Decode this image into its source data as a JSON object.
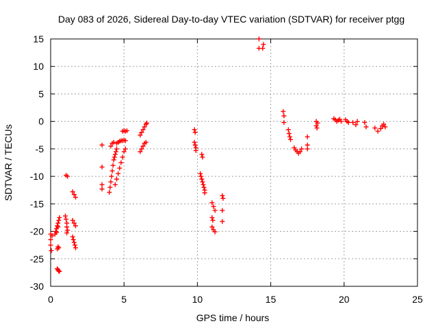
{
  "chart_data": {
    "type": "scatter",
    "title": "Day 083 of 2026, Sidereal Day-to-day VTEC variation (SDTVAR) for receiver ptgg",
    "xlabel": "GPS time / hours",
    "ylabel": "SDTVAR / TECUs",
    "xlim": [
      0,
      25
    ],
    "ylim": [
      -30,
      15
    ],
    "xticks": [
      0,
      5,
      10,
      15,
      20,
      25
    ],
    "yticks": [
      -30,
      -25,
      -20,
      -15,
      -10,
      -5,
      0,
      5,
      10,
      15
    ],
    "xtick_labels": [
      "0",
      "5",
      "10",
      "15",
      "20",
      "25"
    ],
    "ytick_labels": [
      "-30",
      "-25",
      "-20",
      "-15",
      "-10",
      "-5",
      "0",
      "5",
      "10",
      "15"
    ],
    "grid": true,
    "marker": "plus",
    "color": "#ff0000",
    "series": [
      {
        "name": "SDTVAR",
        "points": [
          [
            0.0,
            -20.5
          ],
          [
            0.0,
            -21.5
          ],
          [
            0.0,
            -22.5
          ],
          [
            0.05,
            -23.5
          ],
          [
            0.1,
            -20.8
          ],
          [
            0.3,
            -20.5
          ],
          [
            0.35,
            -20.0
          ],
          [
            0.4,
            -19.5
          ],
          [
            0.45,
            -19.0
          ],
          [
            0.5,
            -18.5
          ],
          [
            0.55,
            -18.0
          ],
          [
            0.6,
            -17.5
          ],
          [
            0.4,
            -20.2
          ],
          [
            0.5,
            -19.2
          ],
          [
            0.45,
            -23.2
          ],
          [
            0.5,
            -22.8
          ],
          [
            0.55,
            -23.0
          ],
          [
            0.45,
            -26.8
          ],
          [
            0.5,
            -27.0
          ],
          [
            0.55,
            -27.2
          ],
          [
            0.6,
            -27.3
          ],
          [
            1.0,
            -17.2
          ],
          [
            1.05,
            -17.8
          ],
          [
            1.1,
            -18.5
          ],
          [
            1.1,
            -19.2
          ],
          [
            1.15,
            -19.8
          ],
          [
            1.1,
            -20.3
          ],
          [
            1.05,
            -9.8
          ],
          [
            1.15,
            -10.0
          ],
          [
            1.5,
            -18.0
          ],
          [
            1.6,
            -18.5
          ],
          [
            1.7,
            -19.0
          ],
          [
            1.5,
            -21.0
          ],
          [
            1.55,
            -21.5
          ],
          [
            1.6,
            -22.0
          ],
          [
            1.65,
            -22.5
          ],
          [
            1.7,
            -23.0
          ],
          [
            1.5,
            -12.8
          ],
          [
            1.6,
            -13.3
          ],
          [
            1.7,
            -13.8
          ],
          [
            3.5,
            -4.3
          ],
          [
            3.5,
            -8.3
          ],
          [
            3.5,
            -11.5
          ],
          [
            3.5,
            -12.3
          ],
          [
            4.0,
            -12.9
          ],
          [
            4.05,
            -12.0
          ],
          [
            4.1,
            -11.0
          ],
          [
            4.15,
            -10.0
          ],
          [
            4.2,
            -9.0
          ],
          [
            4.25,
            -8.0
          ],
          [
            4.3,
            -7.0
          ],
          [
            4.35,
            -6.5
          ],
          [
            4.4,
            -6.0
          ],
          [
            4.45,
            -5.5
          ],
          [
            4.5,
            -5.0
          ],
          [
            4.1,
            -4.5
          ],
          [
            4.2,
            -4.0
          ],
          [
            4.3,
            -3.8
          ],
          [
            4.5,
            -4.0
          ],
          [
            4.6,
            -3.8
          ],
          [
            4.7,
            -3.6
          ],
          [
            4.8,
            -3.5
          ],
          [
            4.9,
            -3.5
          ],
          [
            5.0,
            -3.4
          ],
          [
            5.1,
            -3.5
          ],
          [
            4.4,
            -11.5
          ],
          [
            4.5,
            -10.5
          ],
          [
            4.6,
            -9.5
          ],
          [
            4.7,
            -8.5
          ],
          [
            4.8,
            -7.5
          ],
          [
            4.9,
            -6.5
          ],
          [
            5.0,
            -5.5
          ],
          [
            5.1,
            -5.0
          ],
          [
            4.9,
            -1.8
          ],
          [
            5.0,
            -1.7
          ],
          [
            5.1,
            -1.8
          ],
          [
            5.2,
            -1.7
          ],
          [
            6.1,
            -2.5
          ],
          [
            6.2,
            -2.0
          ],
          [
            6.3,
            -1.5
          ],
          [
            6.4,
            -1.0
          ],
          [
            6.5,
            -0.5
          ],
          [
            6.55,
            -0.3
          ],
          [
            6.1,
            -5.5
          ],
          [
            6.2,
            -5.0
          ],
          [
            6.3,
            -4.5
          ],
          [
            6.4,
            -4.0
          ],
          [
            6.5,
            -3.8
          ],
          [
            9.8,
            -1.5
          ],
          [
            9.85,
            -2.0
          ],
          [
            9.8,
            -3.8
          ],
          [
            9.85,
            -4.3
          ],
          [
            9.9,
            -4.8
          ],
          [
            9.9,
            -5.3
          ],
          [
            10.3,
            -6.0
          ],
          [
            10.35,
            -6.5
          ],
          [
            10.2,
            -9.5
          ],
          [
            10.25,
            -10.0
          ],
          [
            10.3,
            -10.5
          ],
          [
            10.35,
            -11.0
          ],
          [
            10.4,
            -11.5
          ],
          [
            10.45,
            -12.0
          ],
          [
            10.5,
            -12.5
          ],
          [
            10.5,
            -13.0
          ],
          [
            11.0,
            -14.8
          ],
          [
            11.1,
            -15.5
          ],
          [
            11.2,
            -16.2
          ],
          [
            11.0,
            -17.5
          ],
          [
            11.05,
            -18.0
          ],
          [
            11.0,
            -19.2
          ],
          [
            11.1,
            -19.7
          ],
          [
            11.2,
            -20.1
          ],
          [
            11.7,
            -13.5
          ],
          [
            11.75,
            -14.0
          ],
          [
            11.7,
            -16.2
          ],
          [
            11.7,
            -18.2
          ],
          [
            14.2,
            15.0
          ],
          [
            14.2,
            13.3
          ],
          [
            14.45,
            13.3
          ],
          [
            14.5,
            14.0
          ],
          [
            15.85,
            1.8
          ],
          [
            15.9,
            1.0
          ],
          [
            15.9,
            -0.2
          ],
          [
            16.2,
            -1.5
          ],
          [
            16.25,
            -2.2
          ],
          [
            16.3,
            -2.8
          ],
          [
            16.35,
            -3.3
          ],
          [
            16.6,
            -4.8
          ],
          [
            16.7,
            -5.2
          ],
          [
            16.8,
            -5.5
          ],
          [
            16.9,
            -5.8
          ],
          [
            17.0,
            -5.5
          ],
          [
            17.1,
            -5.0
          ],
          [
            17.5,
            -2.8
          ],
          [
            17.5,
            -4.3
          ],
          [
            17.5,
            -5.0
          ],
          [
            18.1,
            0.0
          ],
          [
            18.1,
            -0.8
          ],
          [
            18.15,
            -1.2
          ],
          [
            18.2,
            -0.3
          ],
          [
            19.3,
            0.5
          ],
          [
            19.4,
            0.3
          ],
          [
            19.5,
            0.0
          ],
          [
            19.6,
            0.2
          ],
          [
            19.7,
            0.4
          ],
          [
            19.8,
            0.0
          ],
          [
            20.1,
            0.3
          ],
          [
            20.2,
            0.0
          ],
          [
            20.3,
            -0.2
          ],
          [
            20.6,
            -0.2
          ],
          [
            20.8,
            -0.6
          ],
          [
            20.9,
            0.0
          ],
          [
            21.4,
            -0.2
          ],
          [
            21.5,
            -1.0
          ],
          [
            22.1,
            -1.2
          ],
          [
            22.3,
            -1.8
          ],
          [
            22.5,
            -1.3
          ],
          [
            22.6,
            -0.8
          ],
          [
            22.7,
            -0.5
          ],
          [
            22.8,
            -1.0
          ]
        ]
      }
    ]
  }
}
